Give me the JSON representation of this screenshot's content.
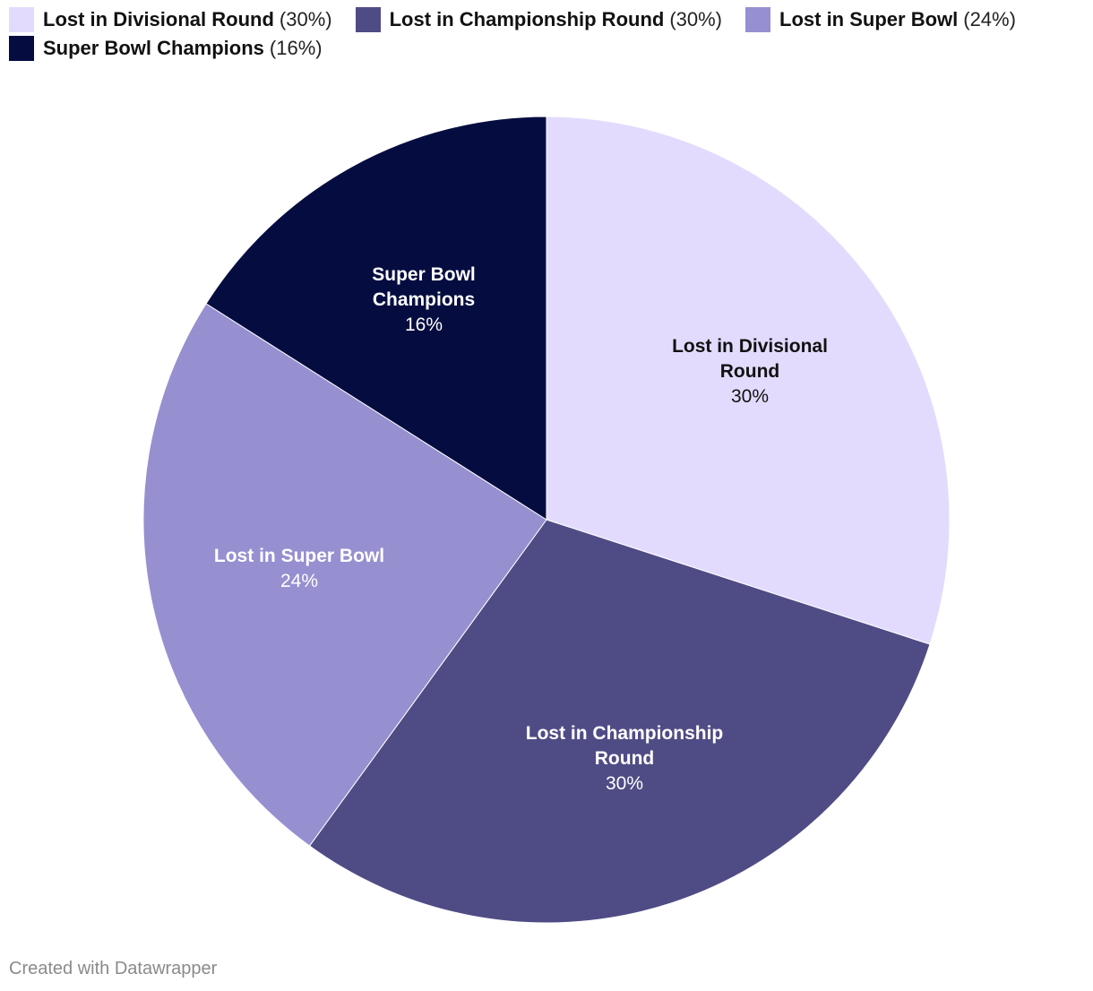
{
  "chart_data": {
    "type": "pie",
    "categories": [
      "Lost in Divisional Round",
      "Lost in Championship Round",
      "Lost in Super Bowl",
      "Super Bowl Champions"
    ],
    "values": [
      30,
      30,
      24,
      16
    ],
    "percent_labels": [
      "30%",
      "30%",
      "24%",
      "16%"
    ],
    "legend_pct_labels": [
      "(30%)",
      "(30%)",
      "(24%)",
      "(16%)"
    ],
    "slice_label_lines": [
      [
        "Lost in Divisional",
        "Round"
      ],
      [
        "Lost in Championship",
        "Round"
      ],
      [
        "Lost in Super Bowl"
      ],
      [
        "Super Bowl",
        "Champions"
      ]
    ],
    "colors": [
      "#e3dbfd",
      "#4f4c85",
      "#968fd0",
      "#050d40"
    ],
    "label_colors": [
      "#111111",
      "#ffffff",
      "#ffffff",
      "#ffffff"
    ],
    "legend_placement": "top-left"
  },
  "footer": {
    "credit": "Created with Datawrapper"
  }
}
